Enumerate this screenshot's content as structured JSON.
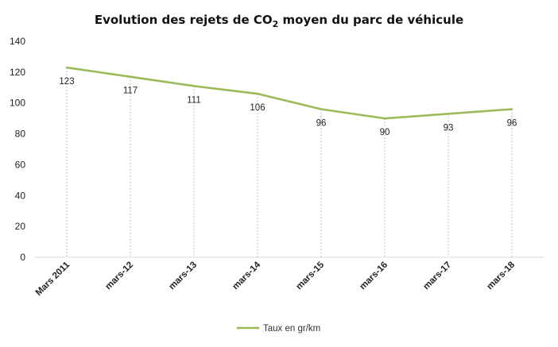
{
  "chart_data": {
    "type": "line",
    "title_prefix": "Evolution des rejets de CO",
    "title_subscript": "2",
    "title_suffix": " moyen du parc de véhicule",
    "categories": [
      "Mars 2011",
      "mars-12",
      "mars-13",
      "mars-14",
      "mars-15",
      "mars-16",
      "mars-17",
      "mars-18"
    ],
    "series": [
      {
        "name": "Taux en gr/km",
        "values": [
          123,
          117,
          111,
          106,
          96,
          90,
          93,
          96
        ]
      }
    ],
    "data_labels": [
      "123",
      "117",
      "111",
      "106",
      "96",
      "90",
      "93",
      "96"
    ],
    "y_ticks": [
      "0",
      "20",
      "40",
      "60",
      "80",
      "100",
      "120",
      "140"
    ],
    "ylim": [
      0,
      140
    ],
    "grid": false,
    "drop_lines": true,
    "legend_position": "bottom",
    "colors": {
      "line": "#9bbb59",
      "drop_line": "#bfbfbf",
      "axis": "#d9d9d9"
    }
  }
}
